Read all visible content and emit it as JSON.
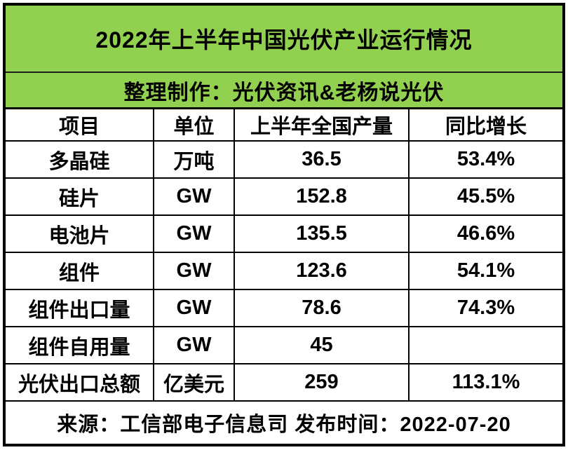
{
  "colors": {
    "banner_green": "#92D050",
    "border": "#000000",
    "background": "#FFFFFF",
    "text": "#000000"
  },
  "chart_data": {
    "type": "table",
    "title": "2022年上半年中国光伏产业运行情况",
    "subtitle": "整理制作：光伏资讯&老杨说光伏",
    "columns": [
      "项目",
      "单位",
      "上半年全国产量",
      "同比增长"
    ],
    "rows": [
      [
        "多晶硅",
        "万吨",
        "36.5",
        "53.4%"
      ],
      [
        "硅片",
        "GW",
        "152.8",
        "45.5%"
      ],
      [
        "电池片",
        "GW",
        "135.5",
        "46.6%"
      ],
      [
        "组件",
        "GW",
        "123.6",
        "54.1%"
      ],
      [
        "组件出口量",
        "GW",
        "78.6",
        "74.3%"
      ],
      [
        "组件自用量",
        "GW",
        "45",
        ""
      ],
      [
        "光伏出口总额",
        "亿美元",
        "259",
        "113.1%"
      ]
    ],
    "source_note": "来源：工信部电子信息司 发布时间：2022-07-20"
  }
}
